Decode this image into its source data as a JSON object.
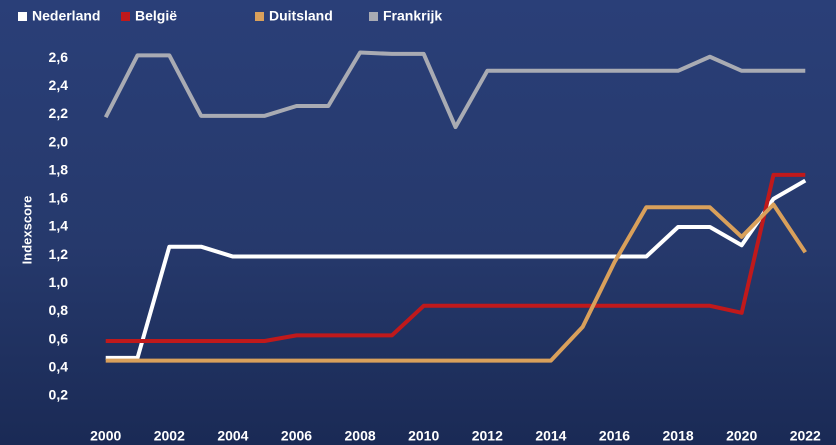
{
  "chart_data": {
    "type": "line",
    "y_label": "Indexscore",
    "x": [
      2000,
      2001,
      2002,
      2003,
      2004,
      2005,
      2006,
      2007,
      2008,
      2009,
      2010,
      2011,
      2012,
      2013,
      2014,
      2015,
      2016,
      2017,
      2018,
      2019,
      2020,
      2021,
      2022
    ],
    "xlim": [
      1999.6,
      2022.4
    ],
    "xticks": [
      2000,
      2002,
      2004,
      2006,
      2008,
      2010,
      2012,
      2014,
      2016,
      2018,
      2020,
      2022
    ],
    "ylim": [
      0,
      2.8
    ],
    "yticks": [
      {
        "value": 0.2,
        "label": "0,2"
      },
      {
        "value": 0.4,
        "label": "0,4"
      },
      {
        "value": 0.6,
        "label": "0,6"
      },
      {
        "value": 0.8,
        "label": "0,8"
      },
      {
        "value": 1.0,
        "label": "1,0"
      },
      {
        "value": 1.2,
        "label": "1,2"
      },
      {
        "value": 1.4,
        "label": "1,4"
      },
      {
        "value": 1.6,
        "label": "1,6"
      },
      {
        "value": 1.8,
        "label": "1,8"
      },
      {
        "value": 2.0,
        "label": "2,0"
      },
      {
        "value": 2.2,
        "label": "2,2"
      },
      {
        "value": 2.4,
        "label": "2,4"
      },
      {
        "value": 2.6,
        "label": "2,6"
      }
    ],
    "series": [
      {
        "name": "Nederland",
        "color": "#ffffff",
        "values": [
          0.47,
          0.47,
          1.26,
          1.26,
          1.19,
          1.19,
          1.19,
          1.19,
          1.19,
          1.19,
          1.19,
          1.19,
          1.19,
          1.19,
          1.19,
          1.19,
          1.19,
          1.19,
          1.4,
          1.4,
          1.27,
          1.6,
          1.73
        ]
      },
      {
        "name": "België",
        "color": "#c0191b",
        "values": [
          0.59,
          0.59,
          0.59,
          0.59,
          0.59,
          0.59,
          0.63,
          0.63,
          0.63,
          0.63,
          0.84,
          0.84,
          0.84,
          0.84,
          0.84,
          0.84,
          0.84,
          0.84,
          0.84,
          0.84,
          0.79,
          1.77,
          1.77
        ]
      },
      {
        "name": "Duitsland",
        "color": "#d9a05b",
        "values": [
          0.45,
          0.45,
          0.45,
          0.45,
          0.45,
          0.45,
          0.45,
          0.45,
          0.45,
          0.45,
          0.45,
          0.45,
          0.45,
          0.45,
          0.45,
          0.69,
          1.15,
          1.54,
          1.54,
          1.54,
          1.33,
          1.56,
          1.22
        ]
      },
      {
        "name": "Frankrijk",
        "color": "#a9abb3",
        "values": [
          2.18,
          2.62,
          2.62,
          2.19,
          2.19,
          2.19,
          2.26,
          2.26,
          2.64,
          2.63,
          2.63,
          2.11,
          2.51,
          2.51,
          2.51,
          2.51,
          2.51,
          2.51,
          2.51,
          2.61,
          2.51,
          2.51,
          2.51
        ]
      }
    ]
  }
}
